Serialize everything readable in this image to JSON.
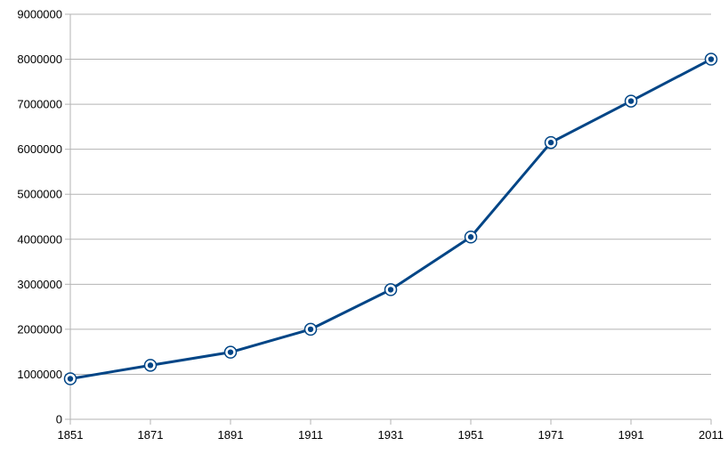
{
  "chart_data": {
    "type": "line",
    "title": "",
    "xlabel": "",
    "ylabel": "",
    "x": [
      "1851",
      "1871",
      "1891",
      "1911",
      "1931",
      "1951",
      "1971",
      "1991",
      "2011"
    ],
    "series": [
      {
        "values": [
          900000,
          1200000,
          1490000,
          2000000,
          2880000,
          4050000,
          6150000,
          7070000,
          8000000
        ],
        "color": "#004586"
      }
    ],
    "ylim": [
      0,
      9000000
    ],
    "yticks": [
      "0",
      "1000000",
      "2000000",
      "3000000",
      "4000000",
      "5000000",
      "6000000",
      "7000000",
      "8000000",
      "9000000"
    ],
    "grid": "horizontal",
    "legend": "none",
    "marker": "circle-in-circle",
    "colors": {
      "grid": "#b3b3b3",
      "axis": "#b3b3b3",
      "line": "#004586"
    }
  }
}
